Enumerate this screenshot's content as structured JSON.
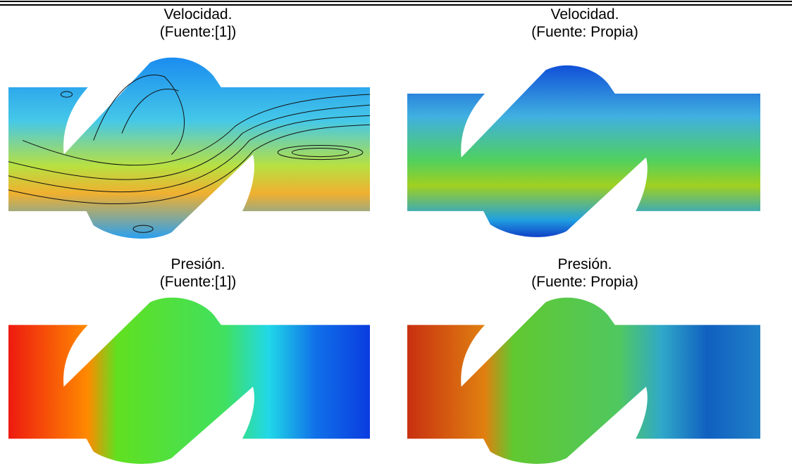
{
  "cells": [
    {
      "title": "Velocidad.",
      "source": "(Fuente:[1])"
    },
    {
      "title": "Velocidad.",
      "source": "(Fuente: Propia)"
    },
    {
      "title": "Presión.",
      "source": "(Fuente:[1])"
    },
    {
      "title": "Presión.",
      "source": "(Fuente: Propia)"
    }
  ]
}
